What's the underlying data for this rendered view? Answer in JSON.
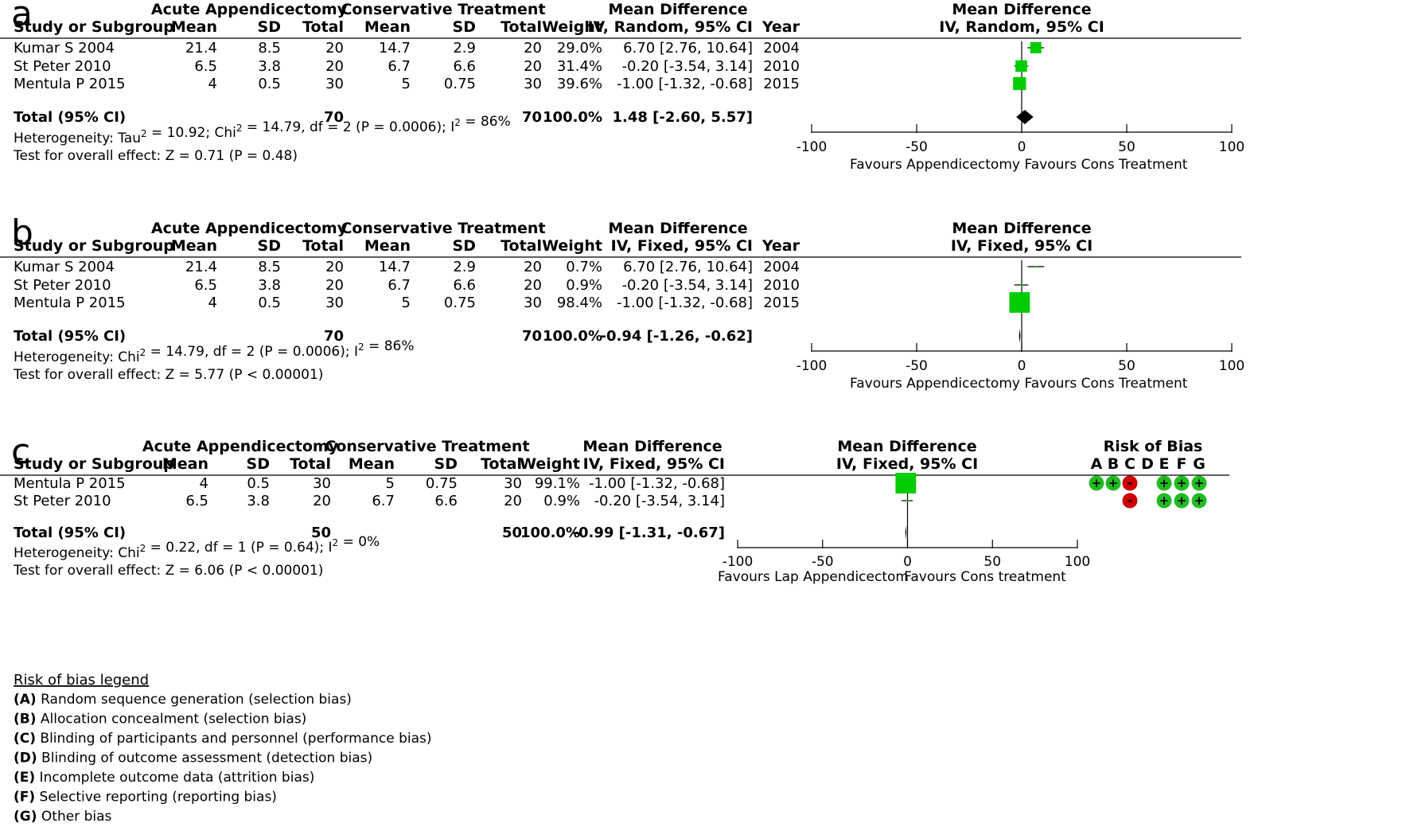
{
  "chart_data": [
    {
      "type": "forest",
      "panel_label": "a",
      "group_headers": [
        "Acute Appendicectomy",
        "Conservative Treatment"
      ],
      "columns": [
        "Study or Subgroup",
        "Mean",
        "SD",
        "Total",
        "Mean",
        "SD",
        "Total",
        "Weight",
        "IV, Random, 95% CI",
        "Year"
      ],
      "effect_header": "Mean Difference",
      "plot_header": [
        "Mean Difference",
        "IV, Random, 95% CI"
      ],
      "studies": [
        {
          "name": "Kumar S 2004",
          "mean1": "21.4",
          "sd1": "8.5",
          "n1": "20",
          "mean2": "14.7",
          "sd2": "2.9",
          "n2": "20",
          "weight": "29.0%",
          "ci_text": "6.70 [2.76, 10.64]",
          "year": "2004",
          "md": 6.7,
          "lo": 2.76,
          "hi": 10.64,
          "w": 29.0
        },
        {
          "name": "St Peter 2010",
          "mean1": "6.5",
          "sd1": "3.8",
          "n1": "20",
          "mean2": "6.7",
          "sd2": "6.6",
          "n2": "20",
          "weight": "31.4%",
          "ci_text": "-0.20 [-3.54, 3.14]",
          "year": "2010",
          "md": -0.2,
          "lo": -3.54,
          "hi": 3.14,
          "w": 31.4
        },
        {
          "name": "Mentula P 2015",
          "mean1": "4",
          "sd1": "0.5",
          "n1": "30",
          "mean2": "5",
          "sd2": "0.75",
          "n2": "30",
          "weight": "39.6%",
          "ci_text": "-1.00 [-1.32, -0.68]",
          "year": "2015",
          "md": -1.0,
          "lo": -1.32,
          "hi": -0.68,
          "w": 39.6
        }
      ],
      "total": {
        "name": "Total (95% CI)",
        "n1": "70",
        "n2": "70",
        "weight": "100.0%",
        "ci_text": "1.48 [-2.60, 5.57]",
        "md": 1.48,
        "lo": -2.6,
        "hi": 5.57
      },
      "heterogeneity": "Heterogeneity: Tau² = 10.92; Chi² = 14.79, df = 2 (P = 0.0006); I² = 86%",
      "overall": "Test for overall effect: Z = 0.71 (P = 0.48)",
      "xlim": [
        -100,
        100
      ],
      "ticks": [
        -100,
        -50,
        0,
        50,
        100
      ],
      "favours_left": "Favours Appendicectomy",
      "favours_right": "Favours Cons Treatment",
      "marker_scale": "weight",
      "colors": {
        "marker": "#00cc00",
        "diamond": "#000000"
      }
    },
    {
      "type": "forest",
      "panel_label": "b",
      "group_headers": [
        "Acute Appendicectomy",
        "Conservative Treatment"
      ],
      "columns": [
        "Study or Subgroup",
        "Mean",
        "SD",
        "Total",
        "Mean",
        "SD",
        "Total",
        "Weight",
        "IV, Fixed, 95% CI",
        "Year"
      ],
      "effect_header": "Mean Difference",
      "plot_header": [
        "Mean Difference",
        "IV, Fixed, 95% CI"
      ],
      "studies": [
        {
          "name": "Kumar S 2004",
          "mean1": "21.4",
          "sd1": "8.5",
          "n1": "20",
          "mean2": "14.7",
          "sd2": "2.9",
          "n2": "20",
          "weight": "0.7%",
          "ci_text": "6.70 [2.76, 10.64]",
          "year": "2004",
          "md": 6.7,
          "lo": 2.76,
          "hi": 10.64,
          "w": 0.7
        },
        {
          "name": "St Peter 2010",
          "mean1": "6.5",
          "sd1": "3.8",
          "n1": "20",
          "mean2": "6.7",
          "sd2": "6.6",
          "n2": "20",
          "weight": "0.9%",
          "ci_text": "-0.20 [-3.54, 3.14]",
          "year": "2010",
          "md": -0.2,
          "lo": -3.54,
          "hi": 3.14,
          "w": 0.9
        },
        {
          "name": "Mentula P 2015",
          "mean1": "4",
          "sd1": "0.5",
          "n1": "30",
          "mean2": "5",
          "sd2": "0.75",
          "n2": "30",
          "weight": "98.4%",
          "ci_text": "-1.00 [-1.32, -0.68]",
          "year": "2015",
          "md": -1.0,
          "lo": -1.32,
          "hi": -0.68,
          "w": 98.4
        }
      ],
      "total": {
        "name": "Total (95% CI)",
        "n1": "70",
        "n2": "70",
        "weight": "100.0%",
        "ci_text": "-0.94 [-1.26, -0.62]",
        "md": -0.94,
        "lo": -1.26,
        "hi": -0.62
      },
      "heterogeneity": "Heterogeneity: Chi² = 14.79, df = 2 (P = 0.0006); I² = 86%",
      "overall": "Test for overall effect: Z = 5.77 (P < 0.00001)",
      "xlim": [
        -100,
        100
      ],
      "ticks": [
        -100,
        -50,
        0,
        50,
        100
      ],
      "favours_left": "Favours Appendicectomy",
      "favours_right": "Favours Cons Treatment",
      "marker_scale": "weight",
      "colors": {
        "marker": "#00cc00",
        "diamond": "#000000"
      }
    },
    {
      "type": "forest",
      "panel_label": "c",
      "group_headers": [
        "Acute Appendicectomy",
        "Conservative Treatment"
      ],
      "columns": [
        "Study or Subgroup",
        "Mean",
        "SD",
        "Total",
        "Mean",
        "SD",
        "Total",
        "Weight",
        "IV, Fixed, 95% CI"
      ],
      "effect_header": "Mean Difference",
      "plot_header": [
        "Mean Difference",
        "IV, Fixed, 95% CI"
      ],
      "studies": [
        {
          "name": "Mentula P 2015",
          "mean1": "4",
          "sd1": "0.5",
          "n1": "30",
          "mean2": "5",
          "sd2": "0.75",
          "n2": "30",
          "weight": "99.1%",
          "ci_text": "-1.00 [-1.32, -0.68]",
          "md": -1.0,
          "lo": -1.32,
          "hi": -0.68,
          "w": 99.1,
          "bias": [
            "+",
            "+",
            "-",
            "",
            "+",
            "+",
            "+"
          ]
        },
        {
          "name": "St Peter 2010",
          "mean1": "6.5",
          "sd1": "3.8",
          "n1": "20",
          "mean2": "6.7",
          "sd2": "6.6",
          "n2": "20",
          "weight": "0.9%",
          "ci_text": "-0.20 [-3.54, 3.14]",
          "md": -0.2,
          "lo": -3.54,
          "hi": 3.14,
          "w": 0.9,
          "bias": [
            "",
            "",
            "-",
            "",
            "+",
            "+",
            "+"
          ]
        }
      ],
      "total": {
        "name": "Total (95% CI)",
        "n1": "50",
        "n2": "50",
        "weight": "100.0%",
        "ci_text": "-0.99 [-1.31, -0.67]",
        "md": -0.99,
        "lo": -1.31,
        "hi": -0.67
      },
      "heterogeneity": "Heterogeneity: Chi² = 0.22, df = 1 (P = 0.64); I² = 0%",
      "overall": "Test for overall effect: Z = 6.06 (P < 0.00001)",
      "xlim": [
        -100,
        100
      ],
      "ticks": [
        -100,
        -50,
        0,
        50,
        100
      ],
      "favours_left": "Favours Lap Appendicectom",
      "favours_right": "Favours Cons treatment",
      "marker_scale": "weight",
      "risk_of_bias": {
        "title": "Risk of Bias",
        "domains": [
          "A",
          "B",
          "C",
          "D",
          "E",
          "F",
          "G"
        ],
        "colors": {
          "low": "#22bb22",
          "high": "#cc0000"
        }
      },
      "colors": {
        "marker": "#00cc00",
        "diamond": "#000000"
      }
    }
  ],
  "legend": {
    "title": "Risk of bias legend",
    "items": [
      {
        "key": "(A)",
        "text": " Random sequence generation (selection bias)"
      },
      {
        "key": "(B)",
        "text": " Allocation concealment (selection bias)"
      },
      {
        "key": "(C)",
        "text": " Blinding of participants and personnel (performance bias)"
      },
      {
        "key": "(D)",
        "text": " Blinding of outcome assessment (detection bias)"
      },
      {
        "key": "(E)",
        "text": " Incomplete outcome data (attrition bias)"
      },
      {
        "key": "(F)",
        "text": " Selective reporting (reporting bias)"
      },
      {
        "key": "(G)",
        "text": " Other bias"
      }
    ]
  }
}
